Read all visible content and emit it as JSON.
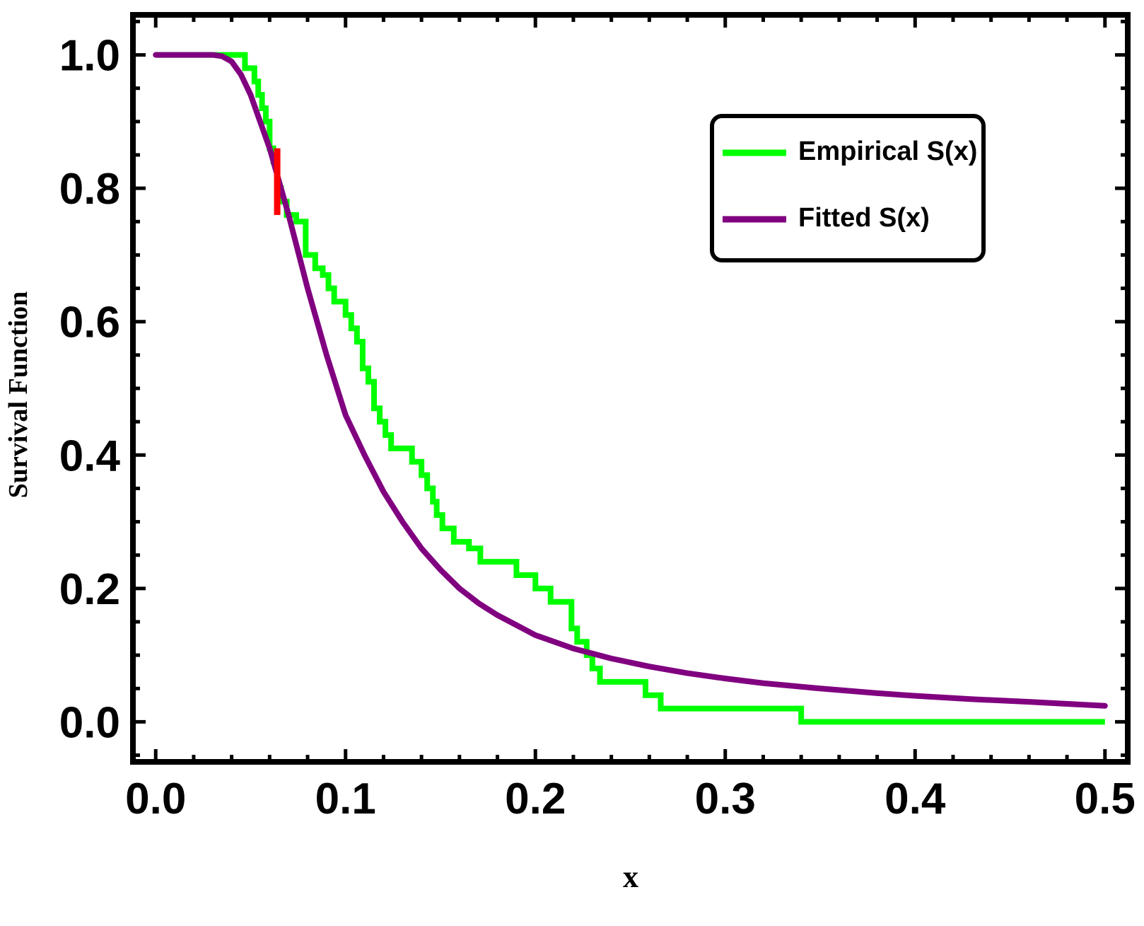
{
  "chart_data": {
    "type": "line",
    "title": "",
    "xlabel": "x",
    "ylabel": "Survival Function",
    "xlim": [
      -0.012,
      0.512
    ],
    "ylim": [
      -0.06,
      1.06
    ],
    "x_ticks": [
      0.0,
      0.1,
      0.2,
      0.3,
      0.4,
      0.5
    ],
    "x_tick_labels": [
      "0.0",
      "0.1",
      "0.2",
      "0.3",
      "0.4",
      "0.5"
    ],
    "y_ticks": [
      0.0,
      0.2,
      0.4,
      0.6,
      0.8,
      1.0
    ],
    "y_tick_labels": [
      "0.0",
      "0.2",
      "0.4",
      "0.6",
      "0.8",
      "1.0"
    ],
    "grid": false,
    "frame": "thick black border with inward ticks on all four sides",
    "legend": {
      "placement": "top-right",
      "entries": [
        "Empirical S(x)",
        "Fitted S(x)"
      ]
    },
    "colors": {
      "empirical": "#00ff00",
      "fitted": "#800080",
      "ks_marker": "#ff0000"
    },
    "series": [
      {
        "name": "Empirical S(x)",
        "kind": "step",
        "x": [
          0.0,
          0.047,
          0.052,
          0.054,
          0.056,
          0.058,
          0.06,
          0.062,
          0.064,
          0.066,
          0.069,
          0.074,
          0.079,
          0.084,
          0.088,
          0.091,
          0.094,
          0.1,
          0.103,
          0.106,
          0.109,
          0.112,
          0.115,
          0.118,
          0.121,
          0.124,
          0.135,
          0.14,
          0.143,
          0.146,
          0.148,
          0.151,
          0.157,
          0.165,
          0.171,
          0.19,
          0.2,
          0.208,
          0.219,
          0.222,
          0.227,
          0.23,
          0.234,
          0.258,
          0.266,
          0.272,
          0.34,
          0.5
        ],
        "y": [
          1.0,
          0.98,
          0.96,
          0.94,
          0.92,
          0.9,
          0.86,
          0.84,
          0.8,
          0.78,
          0.76,
          0.75,
          0.7,
          0.68,
          0.67,
          0.65,
          0.63,
          0.61,
          0.59,
          0.57,
          0.53,
          0.51,
          0.47,
          0.45,
          0.43,
          0.41,
          0.39,
          0.37,
          0.35,
          0.33,
          0.31,
          0.29,
          0.27,
          0.26,
          0.24,
          0.22,
          0.2,
          0.18,
          0.14,
          0.12,
          0.1,
          0.08,
          0.06,
          0.04,
          0.02,
          0.02,
          0.0,
          0.0
        ]
      },
      {
        "name": "Fitted S(x)",
        "kind": "line",
        "x": [
          0.0,
          0.02,
          0.03,
          0.035,
          0.04,
          0.045,
          0.05,
          0.055,
          0.06,
          0.065,
          0.07,
          0.075,
          0.08,
          0.085,
          0.09,
          0.095,
          0.1,
          0.11,
          0.12,
          0.13,
          0.14,
          0.15,
          0.16,
          0.17,
          0.18,
          0.19,
          0.2,
          0.22,
          0.24,
          0.26,
          0.28,
          0.3,
          0.32,
          0.35,
          0.38,
          0.4,
          0.43,
          0.46,
          0.5
        ],
        "y": [
          1.0,
          1.0,
          1.0,
          0.998,
          0.99,
          0.97,
          0.94,
          0.9,
          0.86,
          0.81,
          0.76,
          0.705,
          0.65,
          0.6,
          0.55,
          0.505,
          0.46,
          0.4,
          0.345,
          0.3,
          0.26,
          0.228,
          0.2,
          0.178,
          0.16,
          0.145,
          0.13,
          0.11,
          0.095,
          0.083,
          0.073,
          0.065,
          0.058,
          0.05,
          0.043,
          0.039,
          0.034,
          0.03,
          0.024
        ]
      }
    ],
    "annotations": [
      {
        "kind": "vertical-segment",
        "x": 0.064,
        "y_from": 0.76,
        "y_to": 0.86,
        "color": "#ff0000"
      }
    ]
  }
}
